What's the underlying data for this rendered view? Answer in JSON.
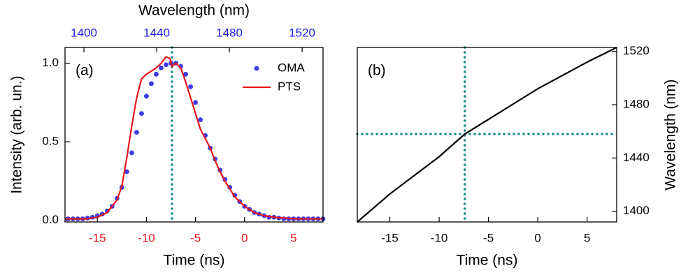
{
  "chart_data": [
    {
      "type": "line",
      "panel_label": "(a)",
      "xlabel": "Time (ns)",
      "ylabel": "Intensity (arb. un.)",
      "x2label": "Wavelength (nm)",
      "xlim": [
        -18.3,
        8
      ],
      "xticks": [
        -15,
        -10,
        -5,
        0,
        5
      ],
      "xtick_color": "#e8141c",
      "x2lim": [
        1389.6,
        1531.5
      ],
      "x2ticks": [
        1400,
        1440,
        1480,
        1520
      ],
      "x2tick_color": "#1a1ae6",
      "ylim": [
        -0.01,
        1.1
      ],
      "yticks": [
        {
          "value": 0,
          "label": "0.0"
        },
        {
          "value": 0.5,
          "label": "0.5"
        },
        {
          "value": 1,
          "label": "1.0"
        }
      ],
      "yaxis_position": "left",
      "legend": "upper right",
      "vline": -7.4,
      "marker_line_color": "#138a8a",
      "series": [
        {
          "name": "OMA",
          "type": "scatter",
          "color": "#3a3ae8",
          "x": [
            -18,
            -17.5,
            -17,
            -16.5,
            -16,
            -15.5,
            -15,
            -14.5,
            -14,
            -13.5,
            -13,
            -12.5,
            -12,
            -11.5,
            -11,
            -10.5,
            -10,
            -9.5,
            -9,
            -8.5,
            -8,
            -7.5,
            -7,
            -6.5,
            -6,
            -5.5,
            -5,
            -4.5,
            -4,
            -3.5,
            -3,
            -2.5,
            -2,
            -1.5,
            -1,
            -0.5,
            0,
            0.5,
            1,
            1.5,
            2,
            2.5,
            3,
            3.5,
            4,
            4.5,
            5,
            5.5,
            6,
            6.5,
            7,
            7.5,
            8
          ],
          "values": [
            0.01,
            0.01,
            0.01,
            0.01,
            0.015,
            0.02,
            0.03,
            0.04,
            0.06,
            0.09,
            0.14,
            0.21,
            0.31,
            0.43,
            0.56,
            0.68,
            0.79,
            0.87,
            0.93,
            0.97,
            0.99,
            1.0,
            1.0,
            0.98,
            0.93,
            0.85,
            0.75,
            0.64,
            0.54,
            0.46,
            0.39,
            0.32,
            0.26,
            0.21,
            0.16,
            0.12,
            0.09,
            0.07,
            0.05,
            0.04,
            0.03,
            0.02,
            0.02,
            0.015,
            0.01,
            0.01,
            0.01,
            0.01,
            0.01,
            0.01,
            0.01,
            0.01,
            0.01
          ]
        },
        {
          "name": "PTS",
          "type": "line",
          "color": "#e8141c",
          "x": [
            -18.3,
            -16,
            -15,
            -14,
            -13,
            -12.5,
            -12,
            -11.5,
            -11,
            -10.5,
            -10,
            -9.5,
            -9,
            -8.5,
            -8,
            -7.6,
            -7.4,
            -7,
            -6.5,
            -6,
            -5.5,
            -5,
            -4.5,
            -4,
            -3.5,
            -3,
            -2.5,
            -2,
            -1.5,
            -1,
            0,
            1,
            2,
            3,
            5,
            8
          ],
          "values": [
            0.01,
            0.01,
            0.02,
            0.05,
            0.13,
            0.22,
            0.4,
            0.6,
            0.78,
            0.9,
            0.93,
            0.95,
            0.97,
            1.0,
            1.04,
            1.03,
            0.98,
            1.0,
            0.97,
            0.88,
            0.78,
            0.68,
            0.58,
            0.52,
            0.46,
            0.38,
            0.31,
            0.25,
            0.2,
            0.15,
            0.09,
            0.05,
            0.03,
            0.02,
            0.01,
            0.01
          ]
        }
      ]
    },
    {
      "type": "line",
      "panel_label": "(b)",
      "xlabel": "Time (ns)",
      "ylabel": "Wavelength (nm)",
      "xlim": [
        -18.3,
        8
      ],
      "xticks": [
        -15,
        -10,
        -5,
        0,
        5
      ],
      "ylim": [
        1392,
        1523
      ],
      "yticks": [
        1400,
        1440,
        1480,
        1520
      ],
      "yaxis_position": "right",
      "vline": -7.4,
      "hline": 1458,
      "marker_line_color": "#138a8a",
      "series": [
        {
          "name": null,
          "type": "line",
          "color": "#000000",
          "x": [
            -18.3,
            -15,
            -10,
            -7.4,
            -5,
            0,
            5,
            8
          ],
          "values": [
            1392,
            1413,
            1441,
            1458,
            1469,
            1492,
            1512,
            1523
          ]
        }
      ]
    }
  ]
}
